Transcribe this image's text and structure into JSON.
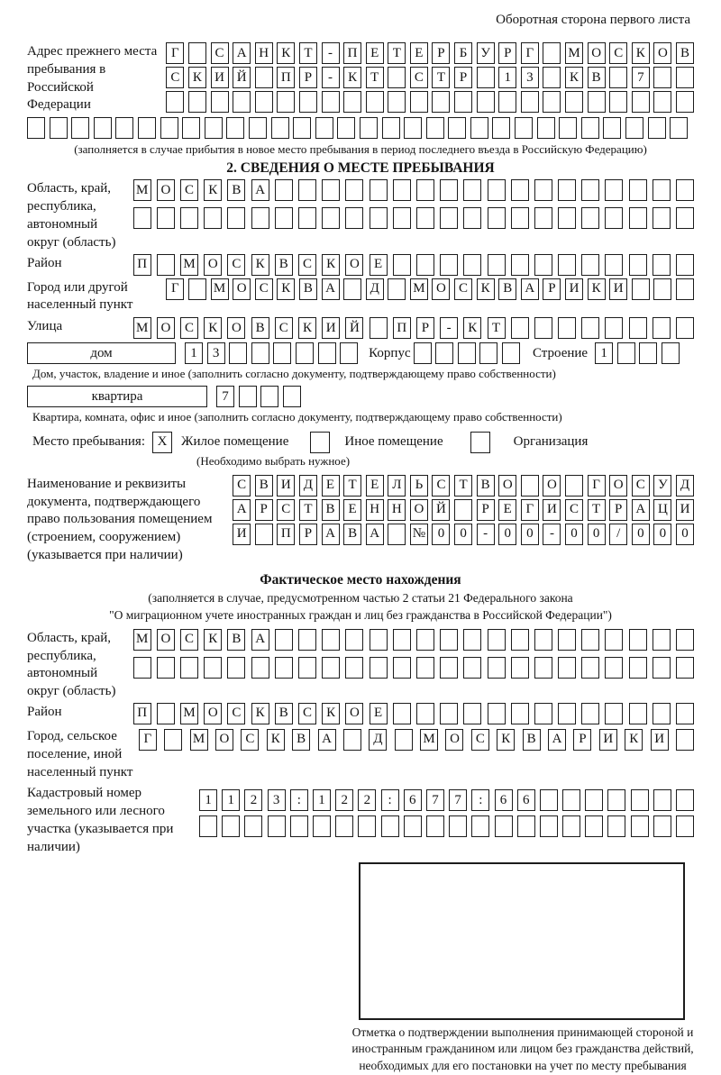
{
  "page": {
    "header": "Оборотная сторона первого листа"
  },
  "prev_address": {
    "label": "Адрес прежнего места пребывания в Российской Федерации",
    "rows": [
      {
        "len": 24,
        "text": "Г САНКТ-ПЕТЕРБУРГ МОСКОВ"
      },
      {
        "len": 24,
        "text": "СКИЙ ПР-КТ СТР 13 КВ 7"
      },
      {
        "len": 24,
        "text": ""
      },
      {
        "len": 30,
        "text": ""
      }
    ],
    "note": "(заполняется в случае прибытия в новое место пребывания в период последнего въезда в Российскую Федерацию)"
  },
  "section2": {
    "title": "2. СВЕДЕНИЯ О МЕСТЕ ПРЕБЫВАНИЯ",
    "region": {
      "label": "Область, край, республика, автономный округ (область)",
      "rows": [
        {
          "len": 24,
          "text": "МОСКВА"
        },
        {
          "len": 24,
          "text": ""
        }
      ]
    },
    "district": {
      "label": "Район",
      "row": {
        "len": 24,
        "text": "П МОСКВСКОЕ"
      }
    },
    "city": {
      "label": "Город или другой населенный пункт",
      "row": {
        "len": 24,
        "text": "Г МОСКВА Д МОСКВАРИКИ"
      }
    },
    "street": {
      "label": "Улица",
      "row": {
        "len": 24,
        "text": "МОСКОВСКИЙ ПР-КТ"
      }
    },
    "house": {
      "box_label": "дом",
      "house_cells": {
        "len": 8,
        "text": "13"
      },
      "korpus_label": "Корпус",
      "korpus_cells": {
        "len": 5,
        "text": ""
      },
      "stroenie_label": "Строение",
      "stroenie_cells": {
        "len": 4,
        "text": "1"
      },
      "note": "Дом, участок, владение и иное (заполнить согласно документу, подтверждающему право собственности)"
    },
    "apartment": {
      "box_label": "квартира",
      "cells": {
        "len": 4,
        "text": "7"
      },
      "note": "Квартира, комната, офис и иное (заполнить согласно документу, подтверждающему право собственности)"
    },
    "stay_type": {
      "label": "Место пребывания:",
      "marks": [
        "X",
        "",
        ""
      ],
      "options": [
        "Жилое помещение",
        "Иное помещение",
        "Организация"
      ],
      "note": "(Необходимо выбрать нужное)"
    },
    "document": {
      "label": "Наименование и реквизиты документа, подтверждающего право пользования помещением (строением, сооружением) (указывается при наличии)",
      "rows": [
        {
          "len": 21,
          "text": "СВИДЕТЕЛЬСТВО О ГОСУД"
        },
        {
          "len": 21,
          "text": "АРСТВЕННОЙ РЕГИСТРАЦИ"
        },
        {
          "len": 21,
          "text": "И ПРАВА №00-00-00/000"
        }
      ]
    }
  },
  "fact": {
    "title": "Фактическое место нахождения",
    "note1": "(заполняется в случае, предусмотренном частью 2 статьи 21 Федерального закона",
    "note2": "\"О миграционном учете иностранных граждан и лиц без гражданства в Российской Федерации\")",
    "region": {
      "label": "Область, край, республика, автономный округ (область)",
      "rows": [
        {
          "len": 24,
          "text": "МОСКВА"
        },
        {
          "len": 24,
          "text": ""
        }
      ]
    },
    "district": {
      "label": "Район",
      "row": {
        "len": 24,
        "text": "П МОСКВСКОЕ"
      }
    },
    "city": {
      "label": "Город, сельское поселение, иной населенный пункт",
      "row": {
        "len": 22,
        "text": "Г МОСКВА Д МОСКВАРИКИ"
      }
    },
    "cadastre": {
      "label": "Кадастровый номер земельного или лесного участка (указывается при наличии)",
      "rows": [
        {
          "len": 22,
          "text": "1123:122:677:66"
        },
        {
          "len": 22,
          "text": ""
        }
      ]
    },
    "stamp_note": "Отметка о подтверждении выполнения принимающей стороной и иностранным гражданином или лицом без гражданства действий, необходимых для его постановки на учет по месту пребывания"
  }
}
